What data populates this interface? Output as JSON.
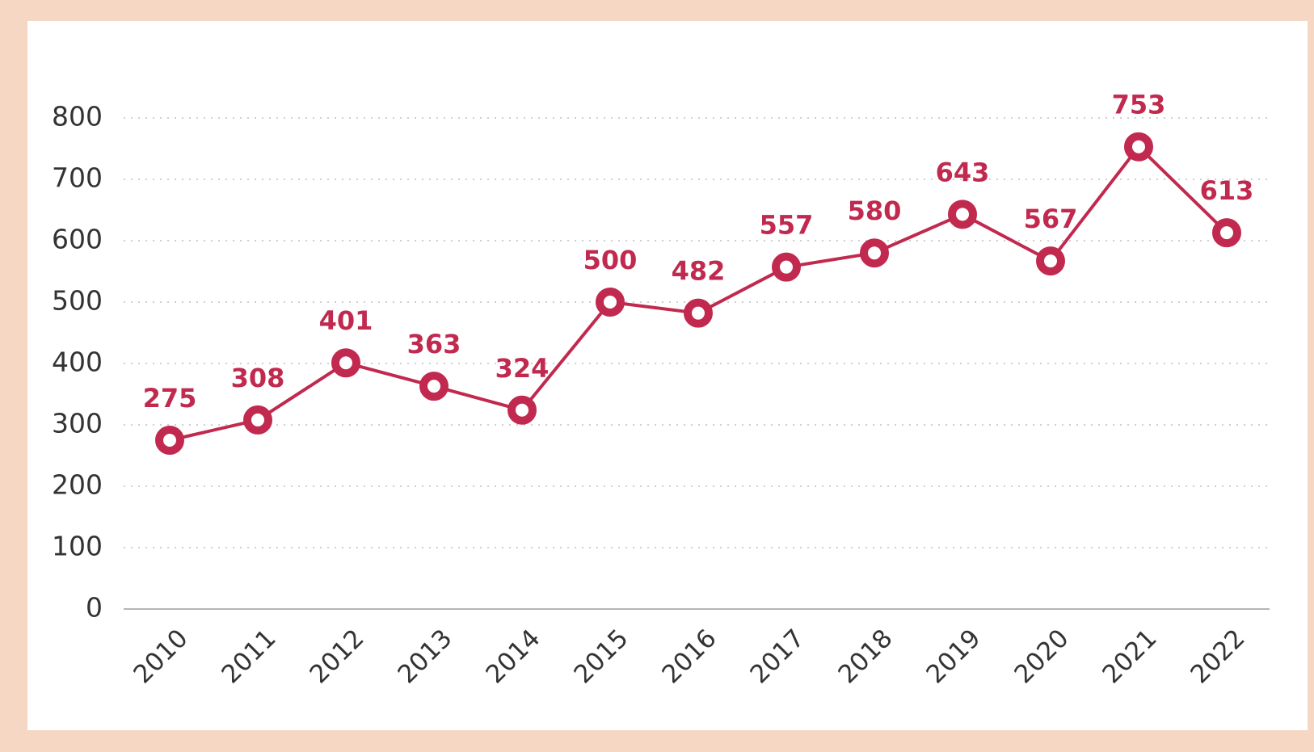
{
  "chart_data": {
    "type": "line",
    "categories": [
      "2010",
      "2011",
      "2012",
      "2013",
      "2014",
      "2015",
      "2016",
      "2017",
      "2018",
      "2019",
      "2020",
      "2021",
      "2022"
    ],
    "values": [
      275,
      308,
      401,
      363,
      324,
      500,
      482,
      557,
      580,
      643,
      567,
      753,
      613
    ],
    "color": "#c1294f",
    "ylim": [
      0,
      800
    ],
    "yticks": [
      0,
      100,
      200,
      300,
      400,
      500,
      600,
      700,
      800
    ],
    "grid": true
  }
}
